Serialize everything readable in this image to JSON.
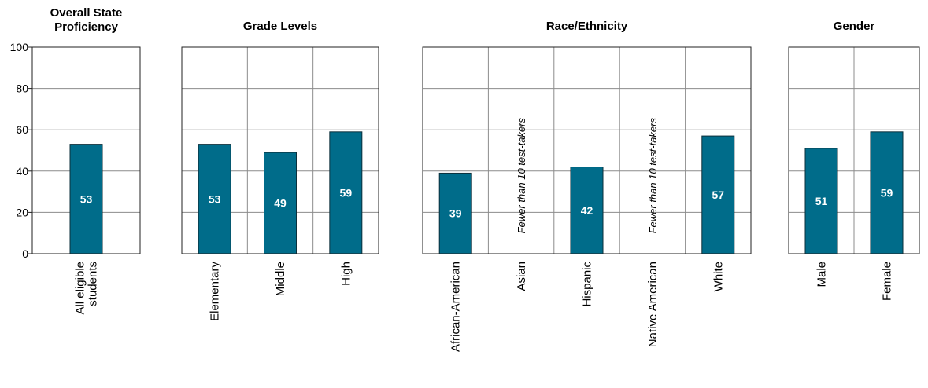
{
  "colors": {
    "bar": "#006C8A",
    "grid": "#8c8c8c",
    "frame": "#222222"
  },
  "chart_data": {
    "type": "bar",
    "ylim": [
      0,
      100
    ],
    "yticks": [
      "0",
      "20",
      "40",
      "60",
      "80",
      "100"
    ],
    "grid": true,
    "panels": [
      {
        "title": [
          "Overall State",
          "Proficiency"
        ],
        "categories": [
          [
            "All eligible",
            "students"
          ]
        ],
        "values": [
          53
        ],
        "notes": [
          null
        ]
      },
      {
        "title": [
          "Grade Levels"
        ],
        "categories": [
          [
            "Elementary"
          ],
          [
            "Middle"
          ],
          [
            "High"
          ]
        ],
        "values": [
          53,
          49,
          59
        ],
        "notes": [
          null,
          null,
          null
        ]
      },
      {
        "title": [
          "Race/Ethnicity"
        ],
        "categories": [
          [
            "African-American"
          ],
          [
            "Asian"
          ],
          [
            "Hispanic"
          ],
          [
            "Native American"
          ],
          [
            "White"
          ]
        ],
        "values": [
          39,
          null,
          42,
          null,
          57
        ],
        "notes": [
          null,
          "Fewer than 10 test-takers",
          null,
          "Fewer than 10 test-takers",
          null
        ]
      },
      {
        "title": [
          "Gender"
        ],
        "categories": [
          [
            "Male"
          ],
          [
            "Female"
          ]
        ],
        "values": [
          51,
          59
        ],
        "notes": [
          null,
          null
        ]
      }
    ]
  }
}
